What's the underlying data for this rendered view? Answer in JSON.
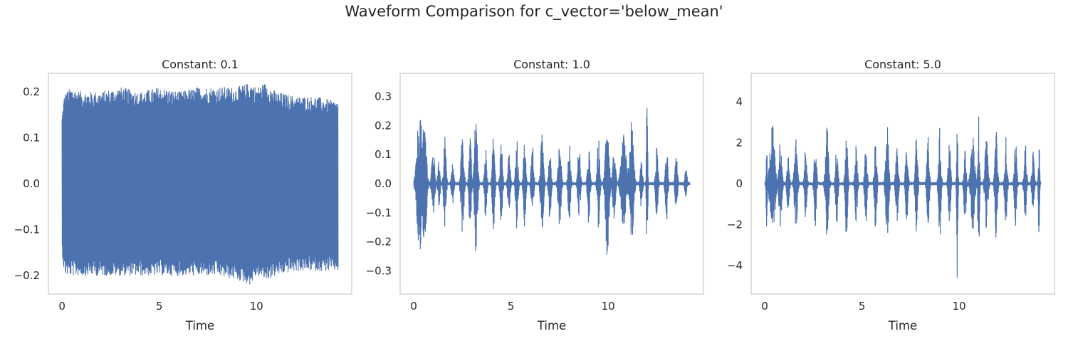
{
  "figure": {
    "suptitle": "Waveform Comparison for c_vector='below_mean'"
  },
  "style": {
    "line_color": "#4c72b0",
    "spine_color": "#cccccc",
    "text_color": "#262626",
    "background": "#ffffff"
  },
  "chart_data": [
    {
      "type": "line",
      "title": "Constant: 0.1",
      "xlabel": "Time",
      "ylabel": "",
      "grid": false,
      "xlim": [
        -0.7,
        14.9
      ],
      "ylim": [
        -0.24,
        0.24
      ],
      "xticks": [
        0,
        5,
        10
      ],
      "yticks": [
        -0.2,
        -0.1,
        0.0,
        0.1,
        0.2
      ],
      "ytick_labels": [
        "−0.2",
        "−0.1",
        "0.0",
        "0.1",
        "0.2"
      ],
      "duration": 14.2,
      "envelope": {
        "x": [
          0,
          0.1,
          0.2,
          0.5,
          1,
          2,
          3,
          4,
          5,
          6,
          7,
          8,
          9,
          9.7,
          10,
          10.5,
          11,
          12,
          13,
          14,
          14.2
        ],
        "max": [
          0.15,
          0.19,
          0.2,
          0.21,
          0.2,
          0.2,
          0.21,
          0.2,
          0.21,
          0.2,
          0.21,
          0.21,
          0.21,
          0.22,
          0.21,
          0.22,
          0.2,
          0.19,
          0.19,
          0.18,
          0.18
        ],
        "min": [
          -0.15,
          -0.19,
          -0.2,
          -0.2,
          -0.2,
          -0.2,
          -0.2,
          -0.2,
          -0.2,
          -0.2,
          -0.2,
          -0.2,
          -0.21,
          -0.22,
          -0.2,
          -0.21,
          -0.2,
          -0.19,
          -0.19,
          -0.19,
          -0.19
        ]
      }
    },
    {
      "type": "line",
      "title": "Constant: 1.0",
      "xlabel": "Time",
      "ylabel": "",
      "grid": false,
      "xlim": [
        -0.7,
        14.9
      ],
      "ylim": [
        -0.38,
        0.38
      ],
      "xticks": [
        0,
        5,
        10
      ],
      "yticks": [
        -0.3,
        -0.2,
        -0.1,
        0.0,
        0.1,
        0.2,
        0.3
      ],
      "ytick_labels": [
        "−0.3",
        "−0.2",
        "−0.1",
        "0.0",
        "0.1",
        "0.2",
        "0.3"
      ],
      "duration": 14.2,
      "bursts": [
        {
          "t": 0.3,
          "w": 0.25,
          "amp": 0.26
        },
        {
          "t": 0.55,
          "w": 0.2,
          "amp": 0.23
        },
        {
          "t": 1.0,
          "w": 0.15,
          "amp": 0.12
        },
        {
          "t": 1.3,
          "w": 0.12,
          "amp": 0.08
        },
        {
          "t": 1.6,
          "w": 0.12,
          "amp": 0.17
        },
        {
          "t": 2.0,
          "w": 0.12,
          "amp": 0.07
        },
        {
          "t": 2.5,
          "w": 0.15,
          "amp": 0.17
        },
        {
          "t": 2.9,
          "w": 0.12,
          "amp": 0.16
        },
        {
          "t": 3.2,
          "w": 0.15,
          "amp": 0.25
        },
        {
          "t": 3.7,
          "w": 0.12,
          "amp": 0.13
        },
        {
          "t": 4.1,
          "w": 0.12,
          "amp": 0.17
        },
        {
          "t": 4.5,
          "w": 0.12,
          "amp": 0.15
        },
        {
          "t": 4.9,
          "w": 0.12,
          "amp": 0.12
        },
        {
          "t": 5.3,
          "w": 0.12,
          "amp": 0.16
        },
        {
          "t": 5.7,
          "w": 0.12,
          "amp": 0.15
        },
        {
          "t": 6.1,
          "w": 0.12,
          "amp": 0.15
        },
        {
          "t": 6.6,
          "w": 0.15,
          "amp": 0.17
        },
        {
          "t": 7.0,
          "w": 0.12,
          "amp": 0.13
        },
        {
          "t": 7.5,
          "w": 0.15,
          "amp": 0.15
        },
        {
          "t": 8.0,
          "w": 0.12,
          "amp": 0.14
        },
        {
          "t": 8.5,
          "w": 0.12,
          "amp": 0.15
        },
        {
          "t": 9.0,
          "w": 0.12,
          "amp": 0.14
        },
        {
          "t": 9.5,
          "w": 0.12,
          "amp": 0.16
        },
        {
          "t": 9.95,
          "w": 0.18,
          "amp": 0.25
        },
        {
          "t": 10.3,
          "w": 0.15,
          "amp": 0.12
        },
        {
          "t": 10.8,
          "w": 0.25,
          "amp": 0.17
        },
        {
          "t": 11.2,
          "w": 0.2,
          "amp": 0.22
        },
        {
          "t": 11.7,
          "w": 0.12,
          "amp": 0.08
        },
        {
          "t": 12.0,
          "w": 0.06,
          "amp": 0.34
        },
        {
          "t": 12.5,
          "w": 0.12,
          "amp": 0.13
        },
        {
          "t": 13.0,
          "w": 0.12,
          "amp": 0.14
        },
        {
          "t": 13.5,
          "w": 0.12,
          "amp": 0.1
        },
        {
          "t": 14.0,
          "w": 0.12,
          "amp": 0.05
        }
      ]
    },
    {
      "type": "line",
      "title": "Constant: 5.0",
      "xlabel": "Time",
      "ylabel": "",
      "grid": false,
      "xlim": [
        -0.7,
        14.9
      ],
      "ylim": [
        -5.4,
        5.4
      ],
      "xticks": [
        0,
        5,
        10
      ],
      "yticks": [
        -4,
        -2,
        0,
        2,
        4
      ],
      "ytick_labels": [
        "−4",
        "−2",
        "0",
        "2",
        "4"
      ],
      "duration": 14.2,
      "bursts": [
        {
          "t": 0.1,
          "w": 0.06,
          "amp": 2.3
        },
        {
          "t": 0.4,
          "w": 0.25,
          "amp": 2.9
        },
        {
          "t": 0.8,
          "w": 0.15,
          "amp": 2.1
        },
        {
          "t": 1.2,
          "w": 0.12,
          "amp": 1.5
        },
        {
          "t": 1.6,
          "w": 0.15,
          "amp": 2.4
        },
        {
          "t": 2.1,
          "w": 0.12,
          "amp": 1.8
        },
        {
          "t": 2.6,
          "w": 0.12,
          "amp": 2.2
        },
        {
          "t": 3.2,
          "w": 0.15,
          "amp": 2.9
        },
        {
          "t": 3.7,
          "w": 0.12,
          "amp": 2.1
        },
        {
          "t": 4.2,
          "w": 0.12,
          "amp": 2.7
        },
        {
          "t": 4.7,
          "w": 0.12,
          "amp": 2.0
        },
        {
          "t": 5.2,
          "w": 0.12,
          "amp": 2.1
        },
        {
          "t": 5.7,
          "w": 0.12,
          "amp": 2.3
        },
        {
          "t": 6.3,
          "w": 0.15,
          "amp": 2.8
        },
        {
          "t": 6.8,
          "w": 0.12,
          "amp": 2.3
        },
        {
          "t": 7.3,
          "w": 0.12,
          "amp": 2.0
        },
        {
          "t": 7.8,
          "w": 0.12,
          "amp": 2.4
        },
        {
          "t": 8.4,
          "w": 0.12,
          "amp": 2.4
        },
        {
          "t": 9.0,
          "w": 0.12,
          "amp": 2.8
        },
        {
          "t": 9.5,
          "w": 0.12,
          "amp": 2.1
        },
        {
          "t": 9.9,
          "w": 0.06,
          "amp": 4.9
        },
        {
          "t": 10.3,
          "w": 0.12,
          "amp": 1.9
        },
        {
          "t": 10.7,
          "w": 0.2,
          "amp": 2.4
        },
        {
          "t": 11.0,
          "w": 0.08,
          "amp": 4.0
        },
        {
          "t": 11.4,
          "w": 0.15,
          "amp": 2.3
        },
        {
          "t": 11.9,
          "w": 0.12,
          "amp": 3.0
        },
        {
          "t": 12.4,
          "w": 0.12,
          "amp": 2.3
        },
        {
          "t": 12.9,
          "w": 0.12,
          "amp": 2.1
        },
        {
          "t": 13.4,
          "w": 0.12,
          "amp": 2.1
        },
        {
          "t": 13.8,
          "w": 0.12,
          "amp": 1.6
        },
        {
          "t": 14.1,
          "w": 0.06,
          "amp": 2.9
        }
      ]
    }
  ]
}
